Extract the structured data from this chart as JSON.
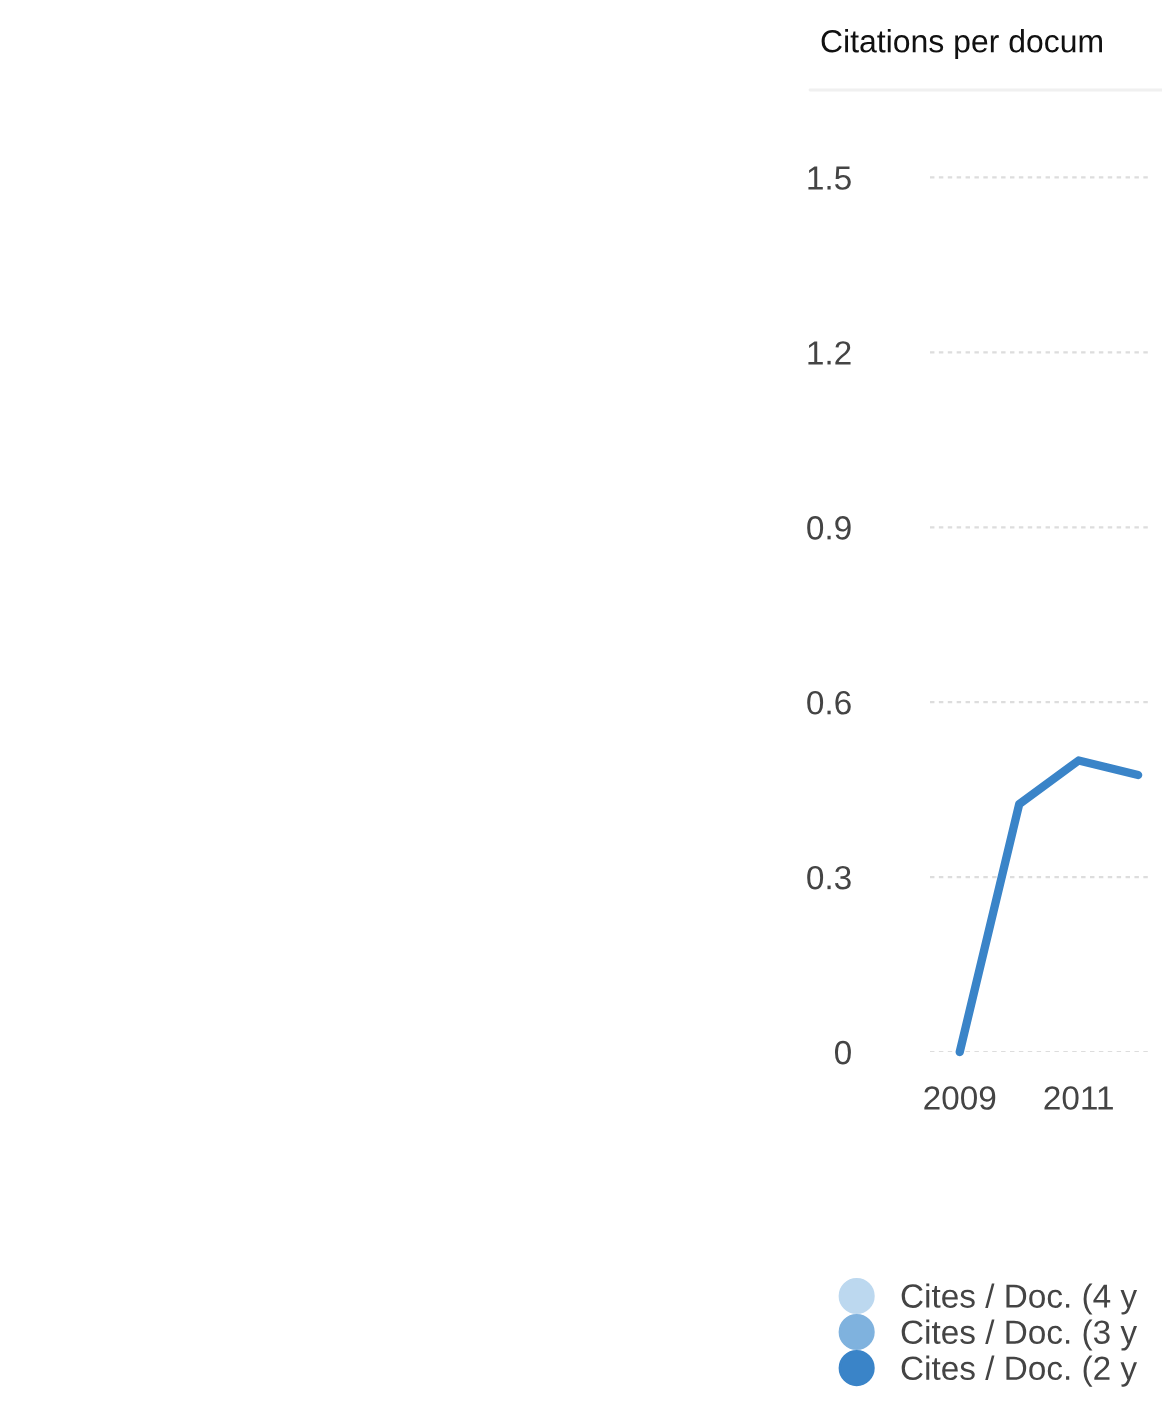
{
  "chart_data": {
    "type": "line",
    "title": "Citations per docum",
    "categories": [
      "2009",
      null,
      "2011",
      null
    ],
    "series": [
      {
        "name": "Cites / Doc. (4 y",
        "color": "#bcd8ef",
        "values": [
          null,
          null,
          null,
          null
        ]
      },
      {
        "name": "Cites / Doc. (3 y",
        "color": "#7fb2de",
        "values": [
          null,
          null,
          null,
          null
        ]
      },
      {
        "name": "Cites / Doc. (2 y",
        "color": "#3a84c8",
        "values": [
          0,
          0.425,
          0.5,
          0.475
        ]
      }
    ],
    "ylim": [
      0,
      1.65
    ],
    "yticks": [
      0,
      0.3,
      0.6,
      0.9,
      1.2,
      1.5
    ],
    "grid": "y",
    "legend": "bottom",
    "marker": "none",
    "line_style": "solid"
  }
}
